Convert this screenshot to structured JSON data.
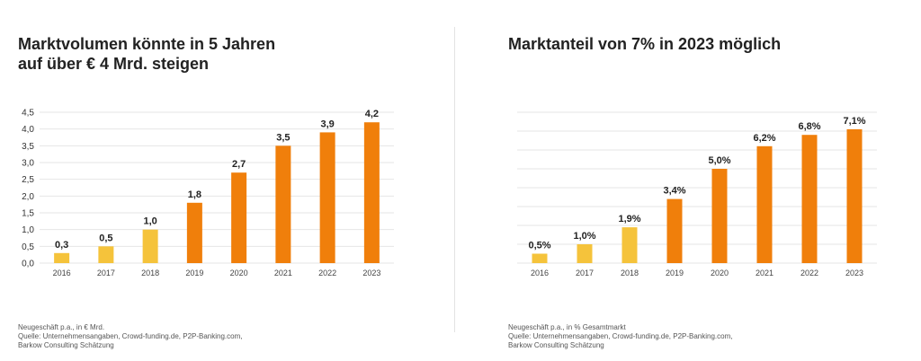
{
  "colors": {
    "highlight": "#F5C33B",
    "main": "#F07F0B",
    "grid": "#e6e6e6",
    "text": "#222222"
  },
  "left": {
    "title": "Marktvolumen könnte in 5 Jahren\nauf über € 4 Mrd. steigen",
    "footnote": [
      "Neugeschäft p.a., in € Mrd.",
      "Quelle: Unternehmensangaben, Crowd-funding.de, P2P-Banking.com,",
      "Barkow Consulting Schätzung"
    ],
    "chart_data": {
      "type": "bar",
      "categories": [
        "2016",
        "2017",
        "2018",
        "2019",
        "2020",
        "2021",
        "2022",
        "2023"
      ],
      "values": [
        0.3,
        0.5,
        1.0,
        1.8,
        2.7,
        3.5,
        3.9,
        4.2
      ],
      "data_labels": [
        "0,3",
        "0,5",
        "1,0",
        "1,8",
        "2,7",
        "3,5",
        "3,9",
        "4,2"
      ],
      "bar_colors": [
        "highlight",
        "highlight",
        "highlight",
        "main",
        "main",
        "main",
        "main",
        "main"
      ],
      "ylim": [
        0,
        4.5
      ],
      "yticks": [
        "0,0",
        "0,5",
        "1,0",
        "1,5",
        "2,0",
        "2,5",
        "3,0",
        "3,5",
        "4,0",
        "4,5"
      ],
      "grid": true
    }
  },
  "right": {
    "title": "Marktanteil von 7% in 2023 möglich",
    "footnote": [
      "Neugeschäft p.a., in % Gesamtmarkt",
      "Quelle: Unternehmensangaben, Crowd-funding.de, P2P-Banking.com,",
      "Barkow Consulting Schätzung"
    ],
    "chart_data": {
      "type": "bar",
      "categories": [
        "2016",
        "2017",
        "2018",
        "2019",
        "2020",
        "2021",
        "2022",
        "2023"
      ],
      "values": [
        0.5,
        1.0,
        1.9,
        3.4,
        5.0,
        6.2,
        6.8,
        7.1
      ],
      "data_labels": [
        "0,5%",
        "1,0%",
        "1,9%",
        "3,4%",
        "5,0%",
        "6,2%",
        "6,8%",
        "7,1%"
      ],
      "bar_colors": [
        "highlight",
        "highlight",
        "highlight",
        "main",
        "main",
        "main",
        "main",
        "main"
      ],
      "ylim": [
        0,
        8
      ],
      "gridlines_at": [
        0,
        1,
        2,
        3,
        4,
        5,
        6,
        7,
        8
      ],
      "grid": true
    }
  }
}
